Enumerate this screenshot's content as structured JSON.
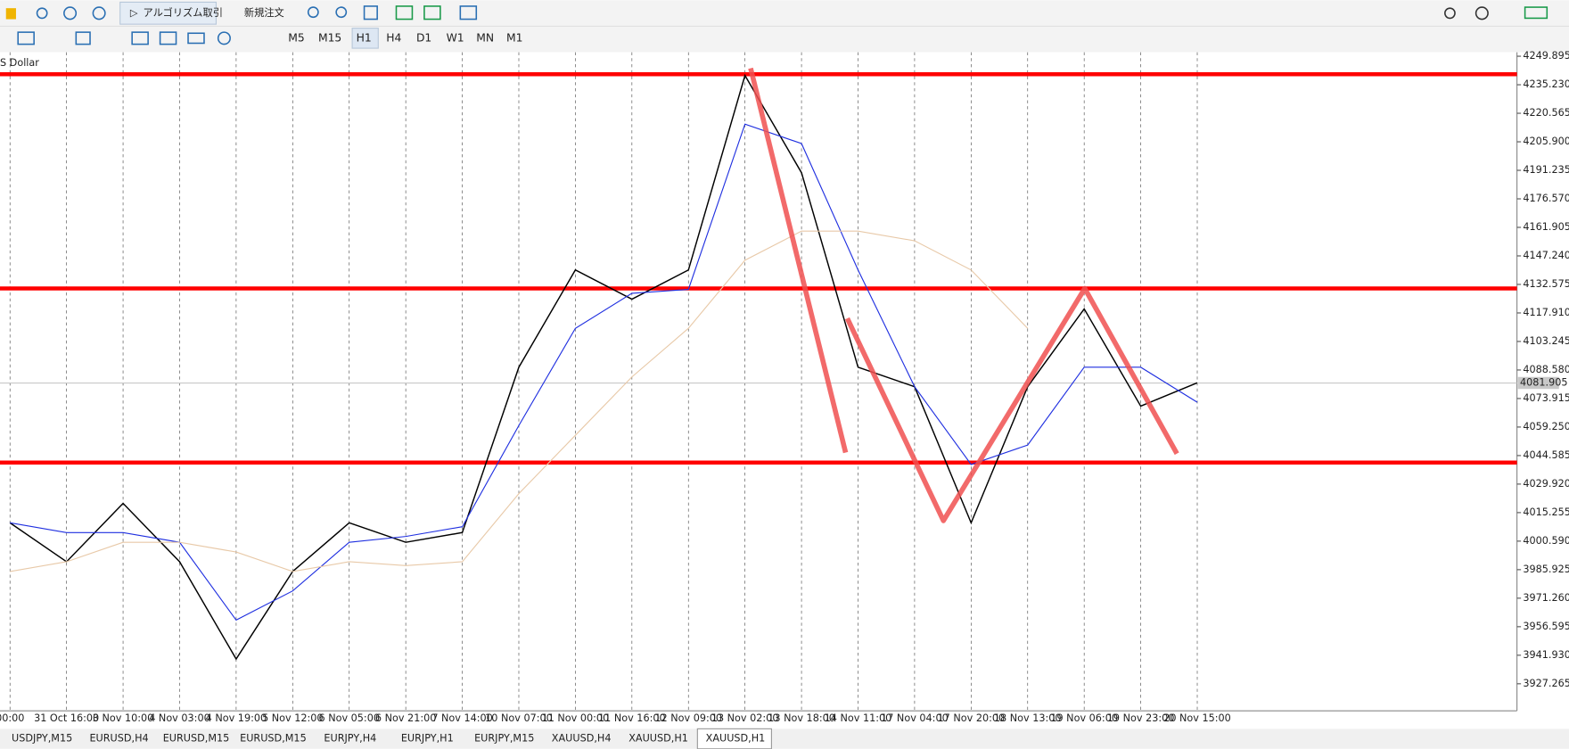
{
  "toolbar": {
    "buttons": [
      "アルゴリズム取引",
      "新規注文"
    ],
    "timeframes": [
      "M5",
      "M15",
      "H1",
      "H4",
      "D1",
      "W1",
      "MN",
      "M1"
    ],
    "active_timeframe": "H1"
  },
  "chart_label": "S Dollar",
  "chart_data": {
    "type": "line",
    "categories": [
      "00:00",
      "31 Oct 16:00",
      "3 Nov 10:00",
      "4 Nov 03:00",
      "4 Nov 19:00",
      "5 Nov 12:00",
      "6 Nov 05:00",
      "6 Nov 21:00",
      "7 Nov 14:00",
      "10 Nov 07:00",
      "11 Nov 00:00",
      "11 Nov 16:00",
      "12 Nov 09:00",
      "13 Nov 02:00",
      "13 Nov 18:00",
      "14 Nov 11:00",
      "17 Nov 04:00",
      "17 Nov 20:00",
      "18 Nov 13:00",
      "19 Nov 06:00",
      "19 Nov 23:00",
      "20 Nov 15:00"
    ],
    "series": [
      {
        "color": "#000000",
        "values": [
          4010,
          3990,
          4020,
          3990,
          3940,
          3985,
          4010,
          4000,
          4005,
          4090,
          4140,
          4125,
          4140,
          4240,
          4190,
          4090,
          4080,
          4010,
          4080,
          4120,
          4070,
          4082
        ]
      },
      {
        "color": "#1f2fe0",
        "values": [
          4010,
          4005,
          4005,
          4000,
          3960,
          3975,
          4000,
          4003,
          4008,
          4060,
          4110,
          4128,
          4130,
          4215,
          4205,
          4140,
          4080,
          4040,
          4050,
          4090,
          4090,
          4072
        ]
      },
      {
        "color": "#e8c9a8",
        "values": [
          3985,
          3990,
          4000,
          4000,
          3995,
          3985,
          3990,
          3988,
          3990,
          4025,
          4055,
          4085,
          4110,
          4145,
          4160,
          4160,
          4155,
          4140,
          4110,
          null,
          null,
          null
        ]
      }
    ],
    "levels": [
      4240.63,
      4130.52,
      4040.98
    ],
    "level_color": "#ff0000",
    "zigzag": {
      "color": "#f05050",
      "pieces": [
        {
          "x": [
            13.1,
            14.78
          ],
          "values": [
            4243.7,
            4046.1
          ]
        },
        {
          "x": [
            14.81,
            16.51,
            19.01,
            20.64
          ],
          "values": [
            4115.1,
            4011.1,
            4130.5,
            4045.6
          ]
        }
      ]
    },
    "current_price": 4081.905,
    "ylim": [
      3913.37,
      4251.95
    ],
    "yticks": [
      4249.895,
      {
        "value": 4235.23,
        "label": "4235.230"
      },
      4220.565,
      {
        "value": 4205.9,
        "label": "4205.900"
      },
      4191.235,
      {
        "value": 4176.57,
        "label": "4176.570"
      },
      4161.905,
      {
        "value": 4147.24,
        "label": "4147.240"
      },
      4132.575,
      {
        "value": 4117.91,
        "label": "4117.910"
      },
      4103.245,
      {
        "value": 4088.58,
        "label": "4088.580"
      },
      4073.915,
      {
        "value": 4059.25,
        "label": "4059.250"
      },
      4044.585,
      {
        "value": 4029.92,
        "label": "4029.920"
      },
      4015.255,
      {
        "value": 4000.59,
        "label": "4000.590"
      },
      3985.925,
      {
        "value": 3971.26,
        "label": "3971.260"
      },
      3956.595,
      {
        "value": 3941.93,
        "label": "3941.930"
      },
      3927.265
    ]
  },
  "tabs": [
    "USDJPY,M15",
    "EURUSD,H4",
    "EURUSD,M15",
    "EURUSD,M15",
    "EURJPY,H4",
    "EURJPY,H1",
    "EURJPY,M15",
    "XAUUSD,H4",
    "XAUUSD,H1",
    "XAUUSD,H1"
  ],
  "active_tab": 9
}
